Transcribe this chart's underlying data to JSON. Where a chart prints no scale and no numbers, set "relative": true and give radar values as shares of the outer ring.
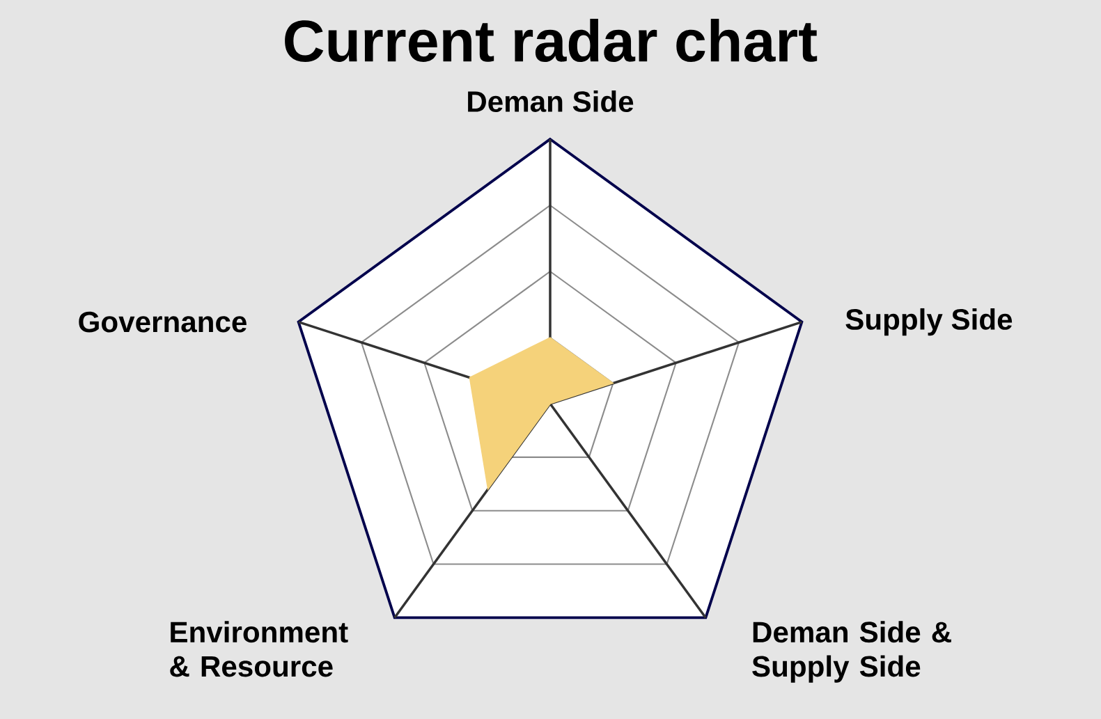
{
  "chart_data": {
    "type": "radar",
    "title": "Current radar chart",
    "categories": [
      "Deman Side",
      "Supply Side",
      "Deman Side & Supply Side",
      "Environment & Resource",
      "Governance"
    ],
    "relative": true,
    "grid": true,
    "series": [
      {
        "color": "#f5d27a",
        "values": [
          0.25,
          0.25,
          0,
          0.4,
          0.32
        ]
      }
    ]
  }
}
